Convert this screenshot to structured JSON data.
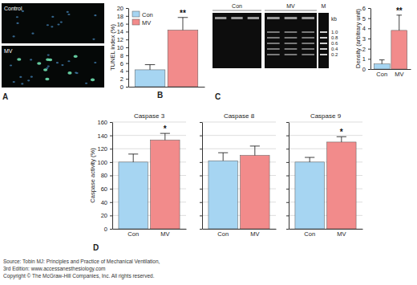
{
  "images": {
    "panel": "A",
    "labels": [
      "Control",
      "MV"
    ]
  },
  "gel": {
    "panel": "C",
    "lanes": [
      "Con",
      "MV"
    ],
    "marker": "M",
    "unit": "kb",
    "marker_sizes": [
      "1.0",
      "0.8",
      "0.6",
      "0.4",
      "0.2"
    ]
  },
  "chart_data": [
    {
      "type": "bar",
      "panel": "B",
      "categories": [
        "Con",
        "MV"
      ],
      "values": [
        4.3,
        14.4
      ],
      "errors": [
        1.3,
        3.2
      ],
      "colors": [
        "#a6d5f2",
        "#f28b8b"
      ],
      "ylabel": "TUNEL index (%)",
      "ylim": [
        0,
        20
      ],
      "yticks": [
        0,
        2,
        4,
        6,
        8,
        10,
        12,
        14,
        16,
        18,
        20
      ],
      "tick_labels": "y",
      "legend": "upper left",
      "annotations": [
        null,
        "**"
      ]
    },
    {
      "type": "bar",
      "categories": [
        "Con",
        "MV"
      ],
      "values": [
        0.5,
        3.8
      ],
      "errors": [
        0.4,
        1.5
      ],
      "colors": [
        "#a6d5f2",
        "#f28b8b"
      ],
      "ylabel": "Density (arbitrary unit)",
      "ylim": [
        0,
        6
      ],
      "yticks": [
        0,
        1,
        2,
        3,
        4,
        5,
        6
      ],
      "tick_labels": true,
      "annotations": [
        null,
        "**"
      ]
    },
    {
      "type": "bar",
      "panel": "D",
      "title": "Caspase 3",
      "categories": [
        "Con",
        "MV"
      ],
      "values": [
        100,
        133
      ],
      "errors": [
        12,
        10
      ],
      "colors": [
        "#a6d5f2",
        "#f28b8b"
      ],
      "ylabel": "Caspase activity (%)",
      "ylim": [
        0,
        160
      ],
      "yticks": [
        0,
        20,
        40,
        60,
        80,
        100,
        120,
        140,
        160
      ],
      "tick_labels": true,
      "grid": true,
      "annotations": [
        null,
        "*"
      ]
    },
    {
      "type": "bar",
      "title": "Caspase 8",
      "categories": [
        "Con",
        "MV"
      ],
      "values": [
        102,
        110
      ],
      "errors": [
        12,
        14
      ],
      "colors": [
        "#a6d5f2",
        "#f28b8b"
      ],
      "ylim": [
        0,
        160
      ],
      "yticks": [
        0,
        20,
        40,
        60,
        80,
        100,
        120,
        140,
        160
      ],
      "tick_labels": "x",
      "grid": true
    },
    {
      "type": "bar",
      "title": "Caspase 9",
      "categories": [
        "Con",
        "MV"
      ],
      "values": [
        100,
        130
      ],
      "errors": [
        7,
        8
      ],
      "colors": [
        "#a6d5f2",
        "#f28b8b"
      ],
      "ylim": [
        0,
        160
      ],
      "yticks": [
        0,
        20,
        40,
        60,
        80,
        100,
        120,
        140,
        160
      ],
      "tick_labels": "x",
      "grid": true,
      "annotations": [
        null,
        "*"
      ]
    }
  ],
  "source": [
    "Source: Tobin MJ: Principles and Practice of Mechanical Ventilation,",
    "3rd Edition: www.accessanesthesiology.com",
    "Copyright © The McGraw-Hill Companies, Inc. All rights reserved."
  ]
}
